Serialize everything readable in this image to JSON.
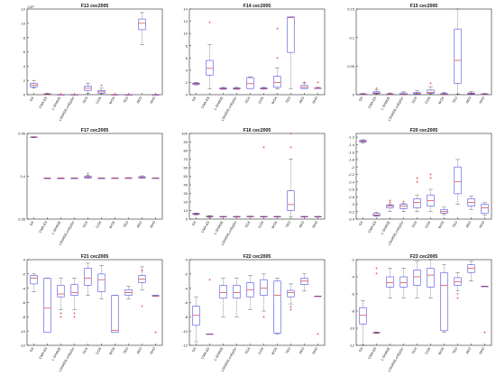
{
  "colors": {
    "box": "#4a4ae8",
    "median": "#d23a3a",
    "whisker": "#333333",
    "outlier": "#d23a3a",
    "axis": "#262626",
    "grid": "#e6e6e6"
  },
  "algorithms": [
    "GA",
    "CMA-ES",
    "L-SHADE",
    "LSHADE-cnEpSin",
    "SCA",
    "GOA",
    "WOA",
    "TEO",
    "AEO",
    "HHO"
  ],
  "chart_data": [
    {
      "type": "box",
      "title": "F13 cec2005",
      "ylim": [
        0,
        12
      ],
      "yticks": [
        0,
        2,
        4,
        6,
        8,
        10,
        12
      ],
      "yexp": "×10⁸",
      "boxes": [
        {
          "q1": 1.1,
          "med": 1.35,
          "q3": 1.6,
          "lo": 0.9,
          "hi": 2.0,
          "out": []
        },
        {
          "q1": 0.05,
          "med": 0.08,
          "q3": 0.12,
          "lo": 0.02,
          "hi": 0.18,
          "out": []
        },
        {
          "q1": 0.0,
          "med": 0.01,
          "q3": 0.02,
          "lo": 0.0,
          "hi": 0.03,
          "out": []
        },
        {
          "q1": 0.0,
          "med": 0.01,
          "q3": 0.02,
          "lo": 0.0,
          "hi": 0.03,
          "out": []
        },
        {
          "q1": 0.6,
          "med": 0.9,
          "q3": 1.2,
          "lo": 0.2,
          "hi": 1.6,
          "out": []
        },
        {
          "q1": 0.2,
          "med": 0.4,
          "q3": 0.6,
          "lo": 0.05,
          "hi": 0.9,
          "out": [
            1.3
          ]
        },
        {
          "q1": 0.0,
          "med": 0.01,
          "q3": 0.02,
          "lo": 0.0,
          "hi": 0.04,
          "out": []
        },
        {
          "q1": 0.0,
          "med": 0.0,
          "q3": 0.01,
          "lo": 0.0,
          "hi": 0.01,
          "out": []
        },
        {
          "q1": 9.1,
          "med": 10.0,
          "q3": 10.6,
          "lo": 7.0,
          "hi": 11.5,
          "out": []
        },
        {
          "q1": 0.0,
          "med": 0.0,
          "q3": 0.01,
          "lo": 0.0,
          "hi": 0.01,
          "out": []
        }
      ]
    },
    {
      "type": "box",
      "title": "F14 cec2005",
      "ylim": [
        0,
        14
      ],
      "yticks": [
        0,
        2,
        4,
        6,
        8,
        10,
        12,
        14
      ],
      "yexp": "",
      "boxes": [
        {
          "q1": 1.7,
          "med": 1.8,
          "q3": 1.9,
          "lo": 1.6,
          "hi": 2.0,
          "out": []
        },
        {
          "q1": 3.2,
          "med": 4.3,
          "q3": 5.6,
          "lo": 1.0,
          "hi": 8.2,
          "out": [
            11.8
          ]
        },
        {
          "q1": 0.9,
          "med": 1.0,
          "q3": 1.1,
          "lo": 0.9,
          "hi": 1.2,
          "out": []
        },
        {
          "q1": 0.9,
          "med": 1.0,
          "q3": 1.1,
          "lo": 0.9,
          "hi": 1.2,
          "out": []
        },
        {
          "q1": 1.0,
          "med": 1.8,
          "q3": 2.8,
          "lo": 1.0,
          "hi": 2.9,
          "out": []
        },
        {
          "q1": 0.95,
          "med": 1.0,
          "q3": 1.1,
          "lo": 0.9,
          "hi": 1.2,
          "out": []
        },
        {
          "q1": 1.2,
          "med": 2.0,
          "q3": 3.0,
          "lo": 1.0,
          "hi": 4.4,
          "out": [
            6.0,
            10.8
          ]
        },
        {
          "q1": 6.9,
          "med": 12.6,
          "q3": 12.7,
          "lo": 1.0,
          "hi": 12.7,
          "out": []
        },
        {
          "q1": 1.0,
          "med": 1.2,
          "q3": 1.5,
          "lo": 1.0,
          "hi": 1.9,
          "out": [
            2.0
          ]
        },
        {
          "q1": 1.0,
          "med": 1.05,
          "q3": 1.1,
          "lo": 1.0,
          "hi": 1.2,
          "out": [
            2.0
          ]
        }
      ]
    },
    {
      "type": "box",
      "title": "F15 cec2005",
      "ylim": [
        0,
        0.15
      ],
      "yticks": [
        0,
        0.05,
        0.1,
        0.15
      ],
      "yexp": "",
      "boxes": [
        {
          "q1": 0.0008,
          "med": 0.001,
          "q3": 0.0015,
          "lo": 0.0005,
          "hi": 0.002,
          "out": []
        },
        {
          "q1": 0.002,
          "med": 0.003,
          "q3": 0.005,
          "lo": 0.001,
          "hi": 0.008,
          "out": [
            0.011
          ]
        },
        {
          "q1": 0.0005,
          "med": 0.001,
          "q3": 0.0015,
          "lo": 0.0003,
          "hi": 0.003,
          "out": []
        },
        {
          "q1": 0.0005,
          "med": 0.001,
          "q3": 0.003,
          "lo": 0.0003,
          "hi": 0.005,
          "out": []
        },
        {
          "q1": 0.001,
          "med": 0.002,
          "q3": 0.004,
          "lo": 0.0005,
          "hi": 0.007,
          "out": []
        },
        {
          "q1": 0.002,
          "med": 0.004,
          "q3": 0.008,
          "lo": 0.001,
          "hi": 0.014,
          "out": [
            0.02
          ]
        },
        {
          "q1": 0.0005,
          "med": 0.001,
          "q3": 0.002,
          "lo": 0.0003,
          "hi": 0.004,
          "out": []
        },
        {
          "q1": 0.02,
          "med": 0.06,
          "q3": 0.115,
          "lo": 0.001,
          "hi": 0.15,
          "out": []
        },
        {
          "q1": 0.001,
          "med": 0.002,
          "q3": 0.003,
          "lo": 0.0005,
          "hi": 0.006,
          "out": []
        },
        {
          "q1": 0.0005,
          "med": 0.001,
          "q3": 0.0015,
          "lo": 0.0003,
          "hi": 0.002,
          "out": []
        }
      ]
    },
    {
      "type": "box",
      "title": "F17 cec2005",
      "ylim": [
        0.35,
        0.45
      ],
      "yticks": [
        0.35,
        0.4,
        0.45
      ],
      "yexp": "",
      "boxes": [
        {
          "q1": 0.4455,
          "med": 0.4458,
          "q3": 0.446,
          "lo": 0.445,
          "hi": 0.4462,
          "out": []
        },
        {
          "q1": 0.3979,
          "med": 0.3979,
          "q3": 0.3979,
          "lo": 0.3979,
          "hi": 0.3979,
          "out": []
        },
        {
          "q1": 0.3979,
          "med": 0.3979,
          "q3": 0.3979,
          "lo": 0.3979,
          "hi": 0.3979,
          "out": []
        },
        {
          "q1": 0.3979,
          "med": 0.3979,
          "q3": 0.3979,
          "lo": 0.3979,
          "hi": 0.3979,
          "out": []
        },
        {
          "q1": 0.398,
          "med": 0.399,
          "q3": 0.4,
          "lo": 0.3979,
          "hi": 0.401,
          "out": [
            0.403
          ]
        },
        {
          "q1": 0.3979,
          "med": 0.3979,
          "q3": 0.3979,
          "lo": 0.3979,
          "hi": 0.398,
          "out": []
        },
        {
          "q1": 0.3979,
          "med": 0.3979,
          "q3": 0.398,
          "lo": 0.3979,
          "hi": 0.3982,
          "out": []
        },
        {
          "q1": 0.3979,
          "med": 0.3979,
          "q3": 0.3981,
          "lo": 0.3979,
          "hi": 0.3984,
          "out": []
        },
        {
          "q1": 0.3979,
          "med": 0.3985,
          "q3": 0.3995,
          "lo": 0.3979,
          "hi": 0.4005,
          "out": []
        },
        {
          "q1": 0.3979,
          "med": 0.3979,
          "q3": 0.398,
          "lo": 0.3979,
          "hi": 0.3981,
          "out": []
        }
      ]
    },
    {
      "type": "box",
      "title": "F16 cec2005",
      "ylim": [
        0,
        100
      ],
      "yticks": [
        0,
        10,
        20,
        30,
        40,
        50,
        60,
        70,
        80,
        90,
        100
      ],
      "yexp": "",
      "boxes": [
        {
          "q1": 5.5,
          "med": 6.0,
          "q3": 6.5,
          "lo": 5.0,
          "hi": 7.0,
          "out": []
        },
        {
          "q1": 2.6,
          "med": 3.0,
          "q3": 3.4,
          "lo": 2.0,
          "hi": 4.0,
          "out": []
        },
        {
          "q1": 3.0,
          "med": 3.0,
          "q3": 3.0,
          "lo": 3.0,
          "hi": 3.0,
          "out": []
        },
        {
          "q1": 3.0,
          "med": 3.0,
          "q3": 3.0,
          "lo": 3.0,
          "hi": 3.0,
          "out": []
        },
        {
          "q1": 3.0,
          "med": 3.0,
          "q3": 3.2,
          "lo": 3.0,
          "hi": 3.5,
          "out": []
        },
        {
          "q1": 3.0,
          "med": 3.0,
          "q3": 3.0,
          "lo": 3.0,
          "hi": 3.0,
          "out": [
            84
          ]
        },
        {
          "q1": 3.0,
          "med": 3.0,
          "q3": 3.0,
          "lo": 3.0,
          "hi": 3.0,
          "out": []
        },
        {
          "q1": 10.0,
          "med": 17.0,
          "q3": 33.0,
          "lo": 3.0,
          "hi": 70.0,
          "out": [
            84,
            100
          ]
        },
        {
          "q1": 3.0,
          "med": 3.0,
          "q3": 3.0,
          "lo": 3.0,
          "hi": 3.0,
          "out": []
        },
        {
          "q1": 3.0,
          "med": 3.0,
          "q3": 3.0,
          "lo": 3.0,
          "hi": 3.0,
          "out": []
        }
      ]
    },
    {
      "type": "box",
      "title": "F20 cec2005",
      "ylim": [
        -3.4,
        -1.1
      ],
      "yticks": [
        -3.4,
        -3.2,
        -3,
        -2.8,
        -2.6,
        -2.4,
        -2.2,
        -2,
        -1.8,
        -1.6,
        -1.4,
        -1.2
      ],
      "yexp": "",
      "boxes": [
        {
          "q1": -1.33,
          "med": -1.31,
          "q3": -1.29,
          "lo": -1.36,
          "hi": -1.27,
          "out": []
        },
        {
          "q1": -3.31,
          "med": -3.29,
          "q3": -3.25,
          "lo": -3.32,
          "hi": -3.22,
          "out": []
        },
        {
          "q1": -3.1,
          "med": -3.05,
          "q3": -3.02,
          "lo": -3.2,
          "hi": -3.0,
          "out": [
            -2.95,
            -2.9
          ]
        },
        {
          "q1": -3.12,
          "med": -3.05,
          "q3": -3.0,
          "lo": -3.2,
          "hi": -2.98,
          "out": [
            -2.93
          ]
        },
        {
          "q1": -3.1,
          "med": -2.95,
          "q3": -2.85,
          "lo": -3.2,
          "hi": -2.75,
          "out": [
            -2.4,
            -2.3
          ]
        },
        {
          "q1": -3.05,
          "med": -2.9,
          "q3": -2.75,
          "lo": -3.2,
          "hi": -2.6,
          "out": [
            -2.3,
            -2.2
          ]
        },
        {
          "q1": -3.24,
          "med": -3.2,
          "q3": -3.14,
          "lo": -3.28,
          "hi": -3.08,
          "out": []
        },
        {
          "q1": -2.72,
          "med": -2.4,
          "q3": -2.0,
          "lo": -3.0,
          "hi": -1.8,
          "out": []
        },
        {
          "q1": -3.05,
          "med": -2.95,
          "q3": -2.85,
          "lo": -3.15,
          "hi": -2.78,
          "out": []
        },
        {
          "q1": -3.25,
          "med": -3.1,
          "q3": -3.0,
          "lo": -3.3,
          "hi": -2.95,
          "out": []
        }
      ]
    },
    {
      "type": "box",
      "title": "F21 cec2005",
      "ylim": [
        -12,
        0
      ],
      "yticks": [
        -12,
        -10,
        -8,
        -6,
        -4,
        -2,
        0
      ],
      "yexp": "",
      "boxes": [
        {
          "q1": -3.4,
          "med": -2.6,
          "q3": -2.2,
          "lo": -4.5,
          "hi": -2.0,
          "out": []
        },
        {
          "q1": -10.2,
          "med": -6.8,
          "q3": -2.6,
          "lo": -10.2,
          "hi": -2.6,
          "out": []
        },
        {
          "q1": -5.2,
          "med": -4.8,
          "q3": -3.6,
          "lo": -7.0,
          "hi": -2.6,
          "out": [
            -7.5,
            -8.0
          ]
        },
        {
          "q1": -5.0,
          "med": -4.6,
          "q3": -3.5,
          "lo": -7.0,
          "hi": -2.6,
          "out": [
            -7.5,
            -8.0
          ]
        },
        {
          "q1": -3.6,
          "med": -2.6,
          "q3": -1.2,
          "lo": -5.0,
          "hi": -0.5,
          "out": []
        },
        {
          "q1": -4.5,
          "med": -2.8,
          "q3": -2.0,
          "lo": -5.5,
          "hi": -0.8,
          "out": []
        },
        {
          "q1": -10.2,
          "med": -9.9,
          "q3": -5.0,
          "lo": -10.2,
          "hi": -5.0,
          "out": []
        },
        {
          "q1": -5.0,
          "med": -4.6,
          "q3": -4.2,
          "lo": -5.5,
          "hi": -3.7,
          "out": []
        },
        {
          "q1": -3.2,
          "med": -2.7,
          "q3": -2.2,
          "lo": -4.2,
          "hi": -1.0,
          "out": [
            -1.5,
            -6.5
          ]
        },
        {
          "q1": -5.1,
          "med": -5.1,
          "q3": -5.0,
          "lo": -5.1,
          "hi": -5.0,
          "out": [
            -10.2
          ]
        }
      ]
    },
    {
      "type": "box",
      "title": "F22 cec2005",
      "ylim": [
        -12,
        0
      ],
      "yticks": [
        -12,
        -10,
        -8,
        -6,
        -4,
        -2,
        0
      ],
      "yexp": "",
      "boxes": [
        {
          "q1": -9.2,
          "med": -7.8,
          "q3": -6.5,
          "lo": -11.5,
          "hi": -5.2,
          "out": []
        },
        {
          "q1": -10.4,
          "med": -10.4,
          "q3": -10.4,
          "lo": -10.4,
          "hi": -10.4,
          "out": [
            -2.8
          ]
        },
        {
          "q1": -5.4,
          "med": -4.6,
          "q3": -3.6,
          "lo": -8.0,
          "hi": -2.6,
          "out": []
        },
        {
          "q1": -5.4,
          "med": -4.6,
          "q3": -3.6,
          "lo": -8.0,
          "hi": -2.6,
          "out": []
        },
        {
          "q1": -5.2,
          "med": -4.2,
          "q3": -3.2,
          "lo": -7.0,
          "hi": -2.2,
          "out": []
        },
        {
          "q1": -5.0,
          "med": -4.0,
          "q3": -2.8,
          "lo": -7.2,
          "hi": -2.0,
          "out": [
            -8.0
          ]
        },
        {
          "q1": -10.3,
          "med": -5.0,
          "q3": -3.0,
          "lo": -10.4,
          "hi": -2.6,
          "out": []
        },
        {
          "q1": -5.2,
          "med": -4.6,
          "q3": -4.3,
          "lo": -6.2,
          "hi": -3.4,
          "out": [
            -6.6,
            -7.0
          ]
        },
        {
          "q1": -3.5,
          "med": -3.0,
          "q3": -2.6,
          "lo": -4.4,
          "hi": -2.0,
          "out": []
        },
        {
          "q1": -5.1,
          "med": -5.1,
          "q3": -5.1,
          "lo": -5.1,
          "hi": -5.1,
          "out": [
            -10.4
          ]
        }
      ]
    },
    {
      "type": "box",
      "title": "F23 cec2005",
      "ylim": [
        -12,
        -2
      ],
      "yticks": [
        -12,
        -10,
        -8,
        -6,
        -4,
        -2
      ],
      "yexp": "",
      "boxes": [
        {
          "q1": -9.5,
          "med": -8.5,
          "q3": -7.6,
          "lo": -12.0,
          "hi": -6.8,
          "out": []
        },
        {
          "q1": -10.55,
          "med": -10.53,
          "q3": -10.5,
          "lo": -10.6,
          "hi": -10.45,
          "out": [
            -3.0,
            -3.6
          ]
        },
        {
          "q1": -5.2,
          "med": -4.7,
          "q3": -4.0,
          "lo": -6.5,
          "hi": -3.0,
          "out": []
        },
        {
          "q1": -5.2,
          "med": -4.7,
          "q3": -4.0,
          "lo": -6.5,
          "hi": -3.0,
          "out": []
        },
        {
          "q1": -5.0,
          "med": -4.0,
          "q3": -3.2,
          "lo": -6.5,
          "hi": -2.2,
          "out": []
        },
        {
          "q1": -5.2,
          "med": -3.8,
          "q3": -3.0,
          "lo": -6.5,
          "hi": -2.0,
          "out": []
        },
        {
          "q1": -10.3,
          "med": -5.0,
          "q3": -3.5,
          "lo": -10.5,
          "hi": -2.6,
          "out": []
        },
        {
          "q1": -5.0,
          "med": -4.6,
          "q3": -4.1,
          "lo": -5.6,
          "hi": -3.5,
          "out": [
            -6.0,
            -6.5
          ]
        },
        {
          "q1": -3.5,
          "med": -3.0,
          "q3": -2.6,
          "lo": -4.5,
          "hi": -2.2,
          "out": []
        },
        {
          "q1": -5.1,
          "med": -5.1,
          "q3": -5.1,
          "lo": -5.1,
          "hi": -5.1,
          "out": [
            -10.5
          ]
        }
      ]
    }
  ]
}
